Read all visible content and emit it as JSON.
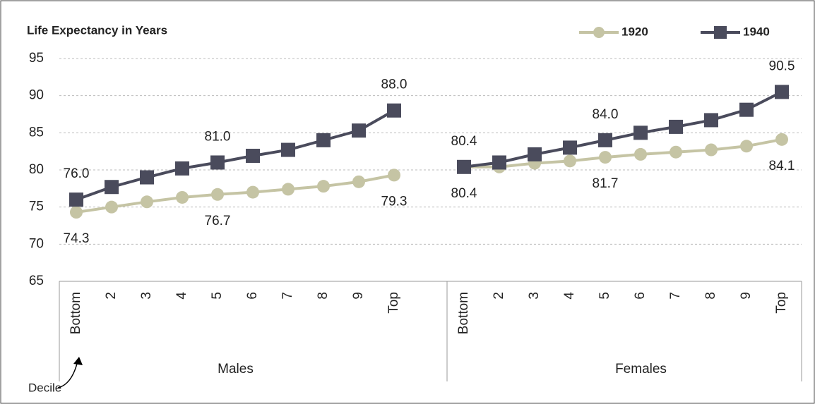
{
  "chart_data": {
    "type": "line",
    "title": "Life Expectancy in Years",
    "annotation": "Decile",
    "groups": [
      {
        "label": "Males",
        "categories": [
          "Bottom",
          "2",
          "3",
          "4",
          "5",
          "6",
          "7",
          "8",
          "9",
          "Top"
        ]
      },
      {
        "label": "Females",
        "categories": [
          "Bottom",
          "2",
          "3",
          "4",
          "5",
          "6",
          "7",
          "8",
          "9",
          "Top"
        ]
      }
    ],
    "series": [
      {
        "name": "1920",
        "color": "#c5c4a4",
        "values": [
          [
            74.3,
            75.0,
            75.7,
            76.3,
            76.7,
            77.0,
            77.4,
            77.8,
            78.4,
            79.3
          ],
          [
            80.4,
            80.4,
            80.9,
            81.2,
            81.7,
            82.1,
            82.4,
            82.7,
            83.2,
            84.1
          ]
        ],
        "value_labels": [
          [
            "74.3",
            null,
            null,
            null,
            "76.7",
            null,
            null,
            null,
            null,
            "79.3"
          ],
          [
            "80.4",
            null,
            null,
            null,
            "81.7",
            null,
            null,
            null,
            null,
            "84.1"
          ]
        ]
      },
      {
        "name": "1940",
        "color": "#4a4b5c",
        "values": [
          [
            76.0,
            77.7,
            79.0,
            80.2,
            81.0,
            81.9,
            82.7,
            84.0,
            85.3,
            88.0
          ],
          [
            80.4,
            81.0,
            82.1,
            83.0,
            84.0,
            85.0,
            85.8,
            86.7,
            88.1,
            90.5
          ]
        ],
        "value_labels": [
          [
            "76.0",
            null,
            null,
            null,
            "81.0",
            null,
            null,
            null,
            null,
            "88.0"
          ],
          [
            "80.4",
            null,
            null,
            null,
            "84.0",
            null,
            null,
            null,
            null,
            "90.5"
          ]
        ]
      }
    ],
    "ylim": [
      65,
      95
    ],
    "yticks": [
      65,
      70,
      75,
      80,
      85,
      90,
      95
    ],
    "grid": true
  }
}
